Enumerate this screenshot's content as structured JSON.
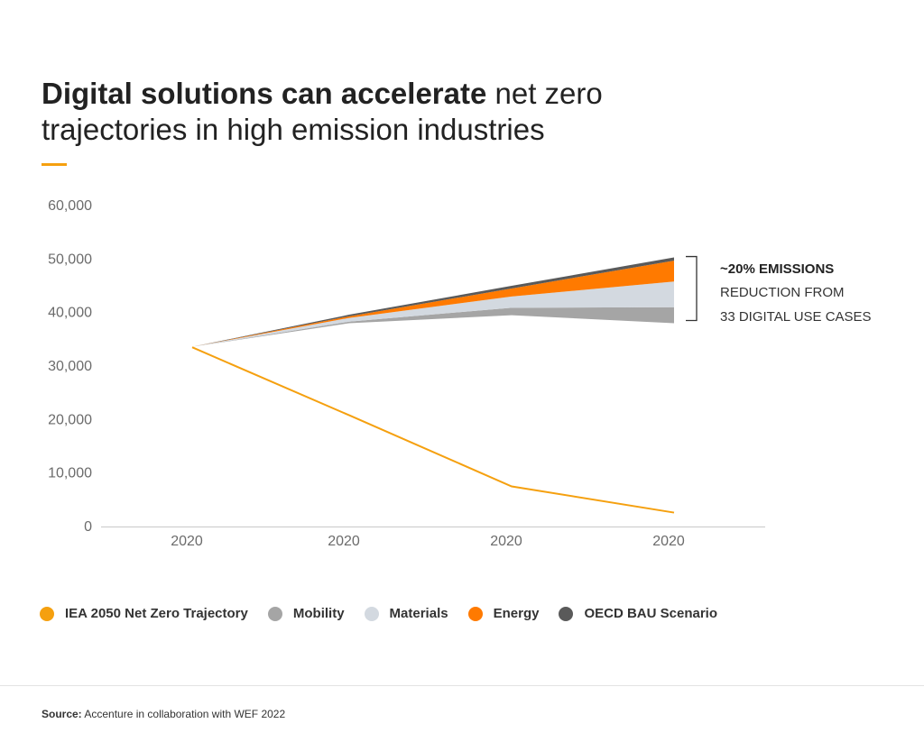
{
  "title": {
    "bold": "Digital solutions can accelerate",
    "regular": " net zero trajectories in high emission industries"
  },
  "colors": {
    "accent": "#F5A00F",
    "trajectory": "#F5A00F",
    "mobility": "#A5A5A5",
    "materials": "#D3D9E0",
    "energy": "#FF7A00",
    "bau": "#5A5A5A",
    "axis": "#C8C8C8"
  },
  "chart_data": {
    "type": "area",
    "title": "Digital solutions can accelerate net zero trajectories in high emission industries",
    "categories": [
      "2020",
      "2020",
      "2020",
      "2020"
    ],
    "ylim": [
      0,
      60000
    ],
    "yticks": [
      0,
      10000,
      20000,
      30000,
      40000,
      50000,
      60000
    ],
    "ytick_labels": [
      "0",
      "10,000",
      "20,000",
      "30,000",
      "40,000",
      "50,000",
      "60,000"
    ],
    "grid": false,
    "series": [
      {
        "name": "IEA 2050 Net Zero Trajectory",
        "kind": "line",
        "values": [
          33500,
          20800,
          7500,
          2600
        ]
      },
      {
        "name": "Mobility",
        "kind": "area",
        "lower": [
          33600,
          38000,
          39500,
          38000
        ],
        "upper": [
          33600,
          38300,
          40900,
          41000
        ]
      },
      {
        "name": "Materials",
        "kind": "area",
        "lower": [
          33600,
          38300,
          40900,
          41000
        ],
        "upper": [
          33600,
          39000,
          43000,
          45800
        ]
      },
      {
        "name": "Energy",
        "kind": "area",
        "lower": [
          33600,
          39000,
          43000,
          45800
        ],
        "upper": [
          33600,
          39300,
          44500,
          49700
        ]
      },
      {
        "name": "OECD BAU Scenario",
        "kind": "area",
        "lower": [
          33600,
          39300,
          44500,
          49700
        ],
        "upper": [
          33600,
          39600,
          45000,
          50300
        ]
      }
    ],
    "annotation": {
      "line1": "~20% EMISSIONS",
      "line2": "REDUCTION FROM",
      "line3": "33 DIGITAL USE CASES",
      "bracket_from": 38000,
      "bracket_to": 50300
    }
  },
  "legend": [
    {
      "label": "IEA 2050 Net Zero Trajectory",
      "color": "#F5A00F"
    },
    {
      "label": "Mobility",
      "color": "#A5A5A5"
    },
    {
      "label": "Materials",
      "color": "#D3D9E0"
    },
    {
      "label": "Energy",
      "color": "#FF7A00"
    },
    {
      "label": "OECD BAU Scenario",
      "color": "#5A5A5A"
    }
  ],
  "source": {
    "label": "Source:",
    "text": " Accenture in collaboration with WEF 2022"
  }
}
